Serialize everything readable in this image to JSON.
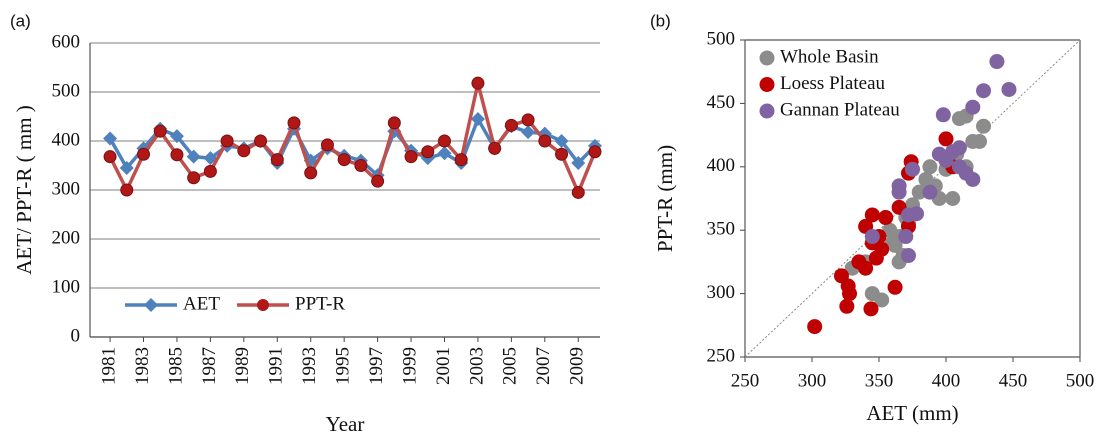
{
  "chart_data": [
    {
      "type": "line",
      "panel_label": "(a)",
      "xlabel": "Year",
      "ylabel": "AET/ PPT-R ( mm )",
      "x": [
        1981,
        1982,
        1983,
        1984,
        1985,
        1986,
        1987,
        1988,
        1989,
        1990,
        1991,
        1992,
        1993,
        1994,
        1995,
        1996,
        1997,
        1998,
        1999,
        2000,
        2001,
        2002,
        2003,
        2004,
        2005,
        2006,
        2007,
        2008,
        2009,
        2010
      ],
      "xlim": [
        1979.8,
        2010.3
      ],
      "xticks": [
        1981,
        1983,
        1985,
        1987,
        1989,
        1991,
        1993,
        1995,
        1997,
        1999,
        2001,
        2003,
        2005,
        2007,
        2009
      ],
      "ylim": [
        0,
        600
      ],
      "yticks": [
        0,
        100,
        200,
        300,
        400,
        500,
        600
      ],
      "grid": true,
      "legend": "lower left",
      "series": [
        {
          "name": "AET",
          "color": "#4f81bd",
          "marker": "diamond",
          "values": [
            405,
            345,
            385,
            425,
            410,
            368,
            365,
            390,
            385,
            400,
            355,
            425,
            360,
            385,
            370,
            360,
            330,
            420,
            380,
            365,
            375,
            355,
            445,
            385,
            430,
            418,
            415,
            400,
            355,
            390
          ]
        },
        {
          "name": "PPT-R",
          "color": "#c0504d",
          "marker": "circle",
          "values": [
            368,
            300,
            373,
            420,
            372,
            325,
            338,
            400,
            380,
            400,
            362,
            437,
            335,
            392,
            362,
            350,
            318,
            437,
            368,
            378,
            400,
            362,
            518,
            385,
            432,
            443,
            400,
            373,
            295,
            378
          ]
        }
      ]
    },
    {
      "type": "scatter",
      "panel_label": "(b)",
      "xlabel": "AET (mm)",
      "ylabel": "PPT-R (mm)",
      "xlim": [
        250,
        500
      ],
      "xticks": [
        250,
        300,
        350,
        400,
        450,
        500
      ],
      "ylim": [
        250,
        500
      ],
      "yticks": [
        250,
        300,
        350,
        400,
        450,
        500
      ],
      "identity_line": true,
      "legend": "upper left",
      "series": [
        {
          "name": "Whole Basin",
          "color": "#8c8c8c",
          "x": [
            345,
            352,
            330,
            340,
            362,
            365,
            368,
            358,
            355,
            370,
            375,
            380,
            385,
            388,
            395,
            400,
            405,
            408,
            410,
            415,
            415,
            420,
            425,
            428,
            365,
            372,
            392,
            360
          ],
          "y": [
            300,
            295,
            320,
            325,
            338,
            325,
            330,
            350,
            360,
            360,
            370,
            380,
            390,
            400,
            375,
            398,
            375,
            410,
            438,
            440,
            400,
            420,
            420,
            432,
            345,
            355,
            385,
            340
          ]
        },
        {
          "name": "Loess Plateau",
          "color": "#c00000",
          "x": [
            302,
            322,
            328,
            327,
            326,
            335,
            340,
            340,
            345,
            344,
            348,
            352,
            350,
            362,
            365,
            372,
            374,
            372,
            400,
            405,
            345,
            355
          ],
          "y": [
            274,
            314,
            300,
            306,
            290,
            325,
            320,
            353,
            362,
            288,
            328,
            335,
            345,
            305,
            368,
            353,
            404,
            395,
            422,
            400,
            340,
            360
          ]
        },
        {
          "name": "Gannan Plateau",
          "color": "#8064a2",
          "x": [
            345,
            365,
            372,
            370,
            372,
            378,
            375,
            388,
            395,
            398,
            400,
            405,
            410,
            410,
            415,
            420,
            420,
            428,
            438,
            447,
            365
          ],
          "y": [
            345,
            380,
            330,
            345,
            362,
            363,
            398,
            380,
            410,
            441,
            405,
            412,
            400,
            415,
            395,
            390,
            447,
            460,
            483,
            461,
            385
          ]
        }
      ]
    }
  ]
}
